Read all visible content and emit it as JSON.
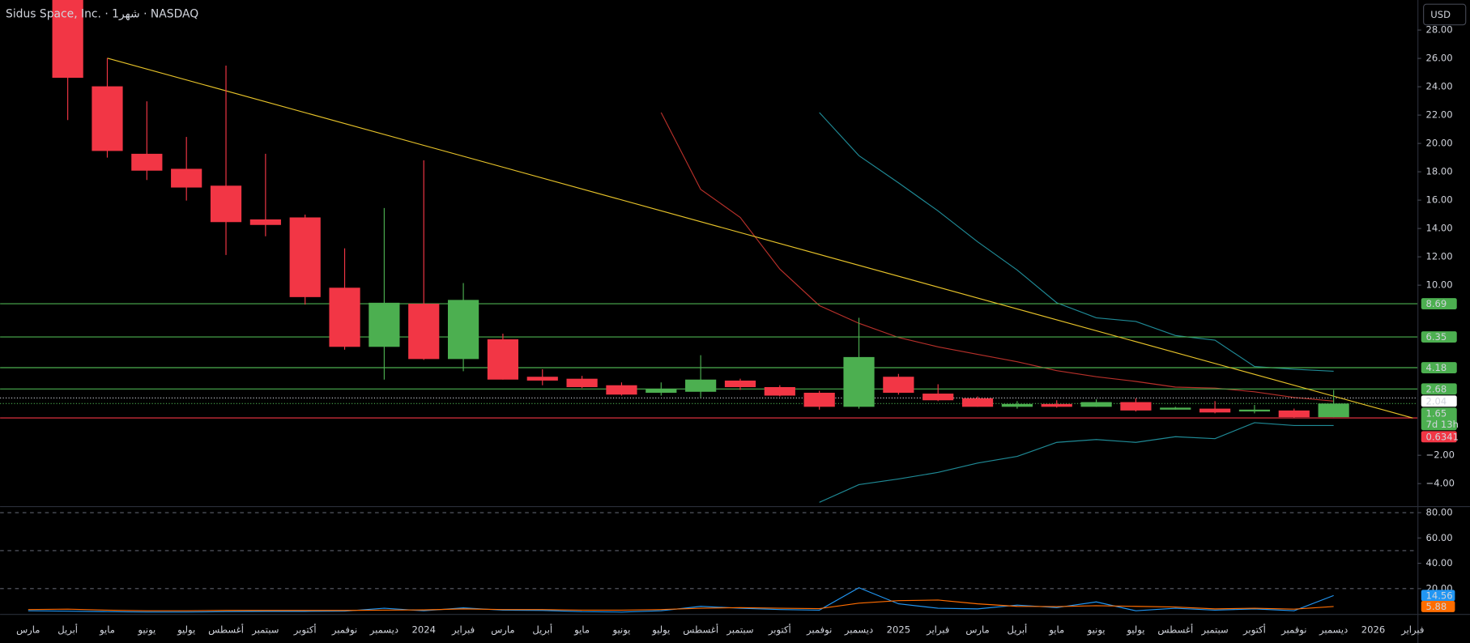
{
  "chart_data": [
    {
      "type": "candlestick",
      "title": "Sidus Space, Inc. · 1شهر · NASDAQ",
      "currency": "USD",
      "categories": [
        "مارس",
        "أبريل",
        "مايو",
        "يونيو",
        "يوليو",
        "أغسطس",
        "سبتمبر",
        "أكتوبر",
        "نوفمبر",
        "ديسمبر",
        "2024",
        "فبراير",
        "مارس",
        "أبريل",
        "مايو",
        "يونيو",
        "يوليو",
        "أغسطس",
        "سبتمبر",
        "أكتوبر",
        "نوفمبر",
        "ديسمبر",
        "2025",
        "فبراير",
        "مارس",
        "أبريل",
        "مايو",
        "يونيو",
        "يوليو",
        "أغسطس",
        "سبتمبر",
        "أكتوبر",
        "نوفمبر",
        "ديسمبر",
        "2026",
        "فبراير"
      ],
      "open": [
        null,
        30.5,
        24.03,
        19.27,
        18.21,
        17.02,
        14.64,
        14.78,
        9.82,
        5.65,
        8.69,
        4.79,
        6.18,
        3.54,
        3.4,
        2.94,
        2.41,
        2.48,
        3.27,
        2.81,
        2.41,
        1.42,
        3.54,
        2.35,
        2.02,
        1.42,
        1.62,
        1.42,
        1.75,
        1.22,
        1.29,
        1.09,
        1.16,
        0.69,
        null,
        null
      ],
      "high": [
        null,
        31.0,
        26.02,
        22.97,
        20.46,
        25.49,
        19.27,
        14.98,
        12.6,
        15.44,
        18.81,
        10.15,
        6.58,
        4.07,
        3.6,
        3.14,
        3.14,
        5.06,
        3.4,
        2.94,
        2.55,
        7.7,
        3.74,
        3.01,
        2.15,
        1.82,
        1.88,
        1.95,
        2.02,
        1.42,
        1.82,
        1.55,
        1.29,
        2.61,
        null,
        null
      ],
      "low": [
        null,
        21.65,
        19.0,
        17.42,
        15.97,
        12.13,
        13.45,
        8.63,
        5.45,
        3.34,
        4.73,
        3.93,
        3.34,
        2.94,
        2.74,
        2.21,
        2.21,
        2.08,
        2.61,
        2.15,
        1.22,
        1.29,
        2.28,
        1.82,
        1.42,
        1.29,
        1.36,
        1.42,
        1.09,
        1.22,
        0.96,
        0.96,
        0.6341,
        0.69,
        null,
        null
      ],
      "close": [
        null,
        24.63,
        19.47,
        18.08,
        16.89,
        14.45,
        14.25,
        9.16,
        5.65,
        8.76,
        4.79,
        8.96,
        3.34,
        3.27,
        2.81,
        2.28,
        2.68,
        3.34,
        2.81,
        2.21,
        1.42,
        4.93,
        2.41,
        1.88,
        1.42,
        1.62,
        1.42,
        1.75,
        1.16,
        1.36,
        1.02,
        1.22,
        0.69,
        1.65,
        null,
        null
      ],
      "up_color": "#4caf50",
      "down_color": "#f23645",
      "ylim": [
        -5.59,
        30.12
      ],
      "yticks": [
        {
          "value": 28,
          "label": "28.00"
        },
        {
          "value": 26,
          "label": "26.00"
        },
        {
          "value": 24,
          "label": "24.00"
        },
        {
          "value": 22,
          "label": "22.00"
        },
        {
          "value": 20,
          "label": "20.00"
        },
        {
          "value": 18,
          "label": "18.00"
        },
        {
          "value": 16,
          "label": "16.00"
        },
        {
          "value": 14,
          "label": "14.00"
        },
        {
          "value": 12,
          "label": "12.00"
        },
        {
          "value": 10,
          "label": "10.00"
        },
        {
          "value": -2,
          "label": "−2.00"
        },
        {
          "value": -4,
          "label": "−4.00"
        }
      ],
      "series": [
        {
          "color": "#b7302a",
          "values": [
            null,
            null,
            null,
            null,
            null,
            null,
            null,
            null,
            null,
            null,
            null,
            null,
            null,
            null,
            null,
            null,
            22.18,
            16.76,
            14.78,
            11.14,
            8.56,
            7.31,
            6.31,
            5.65,
            5.12,
            4.6,
            3.97,
            3.54,
            3.21,
            2.81,
            2.74,
            2.48,
            2.08,
            1.82,
            null,
            null
          ]
        },
        {
          "color": "#1f8a96",
          "values": [
            null,
            null,
            null,
            null,
            null,
            null,
            null,
            null,
            null,
            null,
            null,
            null,
            null,
            null,
            null,
            null,
            null,
            null,
            null,
            null,
            22.18,
            19.14,
            17.22,
            15.24,
            13.06,
            11.07,
            8.76,
            7.7,
            7.44,
            6.45,
            6.12,
            4.26,
            4.07,
            3.93,
            null,
            null
          ]
        },
        {
          "color": "#1f8a96",
          "values": [
            null,
            null,
            null,
            null,
            null,
            null,
            null,
            null,
            null,
            null,
            null,
            null,
            null,
            null,
            null,
            null,
            null,
            null,
            null,
            null,
            -5.32,
            -4.07,
            -3.67,
            -3.21,
            -2.55,
            -2.08,
            -1.09,
            -0.89,
            -1.09,
            -0.69,
            -0.83,
            0.3,
            0.1,
            0.1,
            null,
            null
          ]
        }
      ],
      "trendline": {
        "color": "#e6c229",
        "x": [
          2,
          35
        ],
        "values": [
          26.02,
          0.63
        ]
      },
      "levels": [
        {
          "value": 8.69,
          "color": "#4caf50",
          "style": "solid",
          "badge": "#4caf50",
          "text_color": "#000"
        },
        {
          "value": 6.35,
          "color": "#4caf50",
          "style": "solid",
          "badge": "#4caf50",
          "text_color": "#000"
        },
        {
          "value": 4.18,
          "color": "#4caf50",
          "style": "solid",
          "badge": "#4caf50",
          "text_color": "#000"
        },
        {
          "value": 2.68,
          "color": "#4caf50",
          "style": "solid",
          "badge": "#4caf50",
          "text_color": "#000"
        },
        {
          "value": 2.04,
          "color": "#d1d4dc",
          "style": "dotted",
          "badge": "#ffffff",
          "text_color": "#000"
        },
        {
          "value": 1.65,
          "color": "#4caf50",
          "style": "dotted",
          "badge": "#4caf50",
          "text_color": "#fff",
          "countdown": "7d 13h"
        },
        {
          "value": 0.6341,
          "color": "#f23645",
          "style": "solid",
          "badge": "#f23645",
          "text_color": "#fff"
        }
      ]
    },
    {
      "type": "line",
      "ylim": [
        0,
        84.4
      ],
      "yticks": [
        {
          "value": 80,
          "label": "80.00"
        },
        {
          "value": 60,
          "label": "60.00"
        },
        {
          "value": 40,
          "label": "40.00"
        },
        {
          "value": 20,
          "label": "20.00"
        }
      ],
      "dashed_levels": [
        80,
        50,
        20
      ],
      "series": [
        {
          "color": "#2196f3",
          "values": [
            2.5,
            2.2,
            1.8,
            1.5,
            1.5,
            1.8,
            2.0,
            2.0,
            2.2,
            4.5,
            2.5,
            4.8,
            3.0,
            2.8,
            1.8,
            1.5,
            2.5,
            6.0,
            4.5,
            3.5,
            3.0,
            20.7,
            8.0,
            4.5,
            4.0,
            7.0,
            5.0,
            9.5,
            2.5,
            4.5,
            3.0,
            4.0,
            2.5,
            14.56,
            null,
            null
          ]
        },
        {
          "color": "#ff6d00",
          "values": [
            3.5,
            3.8,
            3.0,
            2.5,
            2.5,
            2.8,
            2.8,
            2.8,
            2.8,
            3.0,
            3.2,
            4.0,
            3.5,
            3.5,
            3.0,
            3.0,
            3.5,
            4.5,
            5.0,
            4.5,
            4.2,
            8.5,
            10.5,
            11.0,
            8.0,
            6.0,
            5.8,
            6.5,
            6.0,
            5.5,
            4.0,
            4.5,
            3.8,
            5.88,
            null,
            null
          ]
        }
      ]
    }
  ]
}
